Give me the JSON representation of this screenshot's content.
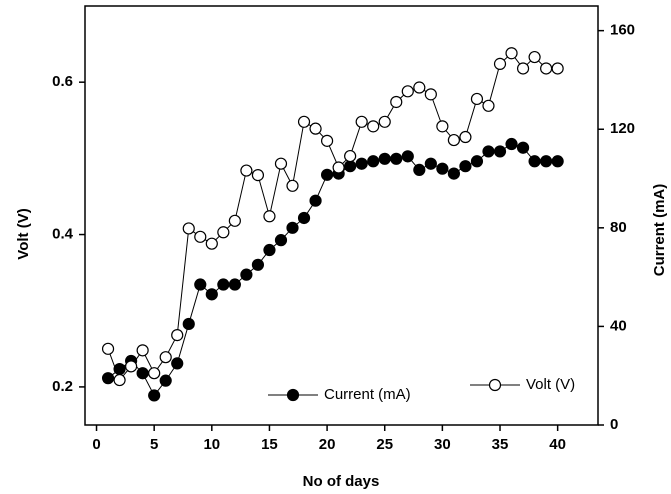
{
  "chart_data": {
    "type": "line",
    "x_label": "No of days",
    "y_label": "Volt (V)",
    "y2_label": "Current (mA)",
    "x": [
      1,
      2,
      3,
      4,
      5,
      6,
      7,
      8,
      9,
      10,
      11,
      12,
      13,
      14,
      15,
      16,
      17,
      18,
      19,
      20,
      21,
      22,
      23,
      24,
      25,
      26,
      27,
      28,
      29,
      30,
      31,
      32,
      33,
      34,
      35,
      36,
      37,
      38,
      39,
      40
    ],
    "series": [
      {
        "name": "Current (mA)",
        "color": "#000000",
        "marker": "filled",
        "axis": "y2",
        "values": [
          19,
          22.7,
          26,
          21,
          12,
          18,
          25,
          41,
          57,
          53,
          57,
          57,
          61,
          65,
          71,
          75,
          80,
          84,
          91,
          101.5,
          102,
          105,
          106,
          107,
          108,
          108,
          109,
          103.5,
          106,
          104,
          102,
          105,
          107,
          111,
          111,
          114,
          112.5,
          107,
          107,
          107
        ]
      },
      {
        "name": "Volt (V)",
        "color": "#000000",
        "marker": "open",
        "axis": "y",
        "values": [
          0.25,
          0.209,
          0.227,
          0.248,
          0.218,
          0.239,
          0.268,
          0.408,
          0.397,
          0.388,
          0.403,
          0.418,
          0.484,
          0.478,
          0.424,
          0.493,
          0.464,
          0.548,
          0.539,
          0.523,
          0.488,
          0.503,
          0.548,
          0.542,
          0.548,
          0.574,
          0.588,
          0.593,
          0.584,
          0.542,
          0.524,
          0.528,
          0.578,
          0.569,
          0.624,
          0.638,
          0.618,
          0.633,
          0.618,
          0.618
        ]
      }
    ],
    "xlim": [
      -1,
      43.5
    ],
    "xticks": [
      0,
      5,
      10,
      15,
      20,
      25,
      30,
      35,
      40
    ],
    "ylim": [
      0.15,
      0.7
    ],
    "yticks": [
      0.2,
      0.4,
      0.6
    ],
    "y2lim": [
      0,
      170
    ],
    "y2ticks": [
      0,
      40,
      80,
      120,
      160
    ]
  }
}
